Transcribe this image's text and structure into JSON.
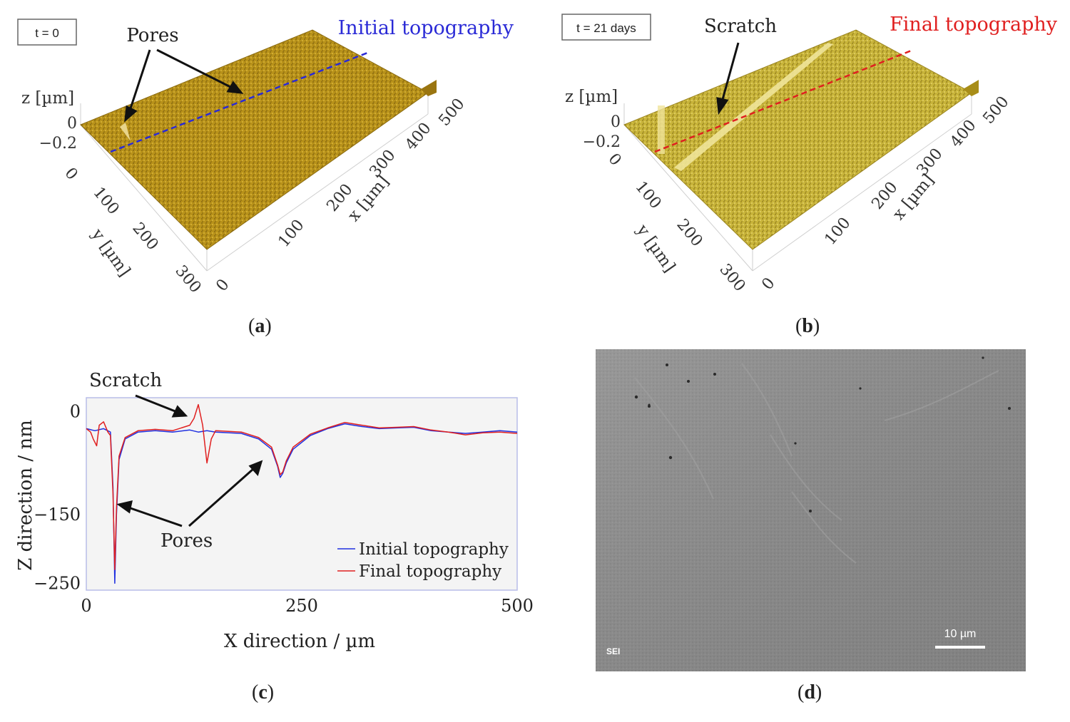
{
  "panel_a": {
    "time_label": "t = 0",
    "title": "Initial topography",
    "title_color": "#2a2ad6",
    "annotation": "Pores",
    "z_axis_label": "z [µm]",
    "z_ticks": [
      "0",
      "−0.2"
    ],
    "x_axis_label": "x [µm]",
    "x_ticks": [
      "0",
      "100",
      "200",
      "300",
      "400",
      "500"
    ],
    "y_axis_label": "y [µm]",
    "y_ticks": [
      "0",
      "100",
      "200",
      "300"
    ],
    "surface_color": "#b8921a",
    "caption_letter": "a"
  },
  "panel_b": {
    "time_label": "t = 21 days",
    "title": "Final topography",
    "title_color": "#e02020",
    "annotation": "Scratch",
    "z_axis_label": "z [µm]",
    "z_ticks": [
      "0",
      "−0.2"
    ],
    "x_axis_label": "x [µm]",
    "x_ticks": [
      "0",
      "100",
      "200",
      "300",
      "400",
      "500"
    ],
    "y_axis_label": "y [µm]",
    "y_ticks": [
      "0",
      "100",
      "200",
      "300"
    ],
    "surface_color": "#c8b43a",
    "caption_letter": "b"
  },
  "panel_c": {
    "caption_letter": "c",
    "annotations": {
      "scratch": "Scratch",
      "pores": "Pores"
    }
  },
  "panel_d": {
    "caption_letter": "d",
    "detector_label": "SEI",
    "scale_bar_label": "10 µm"
  },
  "chart_data": {
    "type": "line",
    "title": "",
    "xlabel": "X direction / µm",
    "ylabel": "Z direction / nm",
    "xlim": [
      0,
      500
    ],
    "ylim": [
      -260,
      20
    ],
    "x_ticks": [
      "0",
      "250",
      "500"
    ],
    "y_ticks": [
      "0",
      "−150",
      "−250"
    ],
    "legend_position": "bottom-right",
    "series": [
      {
        "name": "Initial topography",
        "color": "#2030e0",
        "x": [
          0,
          10,
          20,
          28,
          31,
          33,
          35,
          38,
          45,
          60,
          80,
          100,
          120,
          130,
          140,
          150,
          180,
          200,
          215,
          222,
          225,
          228,
          232,
          240,
          260,
          280,
          300,
          320,
          340,
          360,
          380,
          400,
          420,
          440,
          460,
          480,
          500
        ],
        "y": [
          -25,
          -28,
          -25,
          -30,
          -110,
          -250,
          -150,
          -70,
          -40,
          -30,
          -28,
          -30,
          -27,
          -30,
          -28,
          -30,
          -32,
          -40,
          -55,
          -80,
          -96,
          -90,
          -75,
          -55,
          -35,
          -25,
          -18,
          -22,
          -25,
          -24,
          -23,
          -28,
          -30,
          -32,
          -30,
          -28,
          -30
        ]
      },
      {
        "name": "Final topography",
        "color": "#e02020",
        "x": [
          0,
          5,
          8,
          12,
          15,
          20,
          25,
          28,
          31,
          33,
          35,
          38,
          45,
          60,
          80,
          100,
          120,
          125,
          130,
          135,
          140,
          145,
          150,
          180,
          200,
          215,
          222,
          225,
          228,
          232,
          240,
          260,
          280,
          300,
          320,
          340,
          360,
          380,
          400,
          420,
          440,
          460,
          480,
          500
        ],
        "y": [
          -25,
          -30,
          -40,
          -50,
          -20,
          -15,
          -30,
          -35,
          -120,
          -230,
          -140,
          -65,
          -38,
          -28,
          -26,
          -28,
          -20,
          -10,
          10,
          -20,
          -75,
          -40,
          -28,
          -30,
          -38,
          -52,
          -78,
          -92,
          -88,
          -72,
          -52,
          -33,
          -24,
          -16,
          -20,
          -24,
          -23,
          -22,
          -27,
          -30,
          -34,
          -31,
          -30,
          -32
        ]
      }
    ]
  }
}
